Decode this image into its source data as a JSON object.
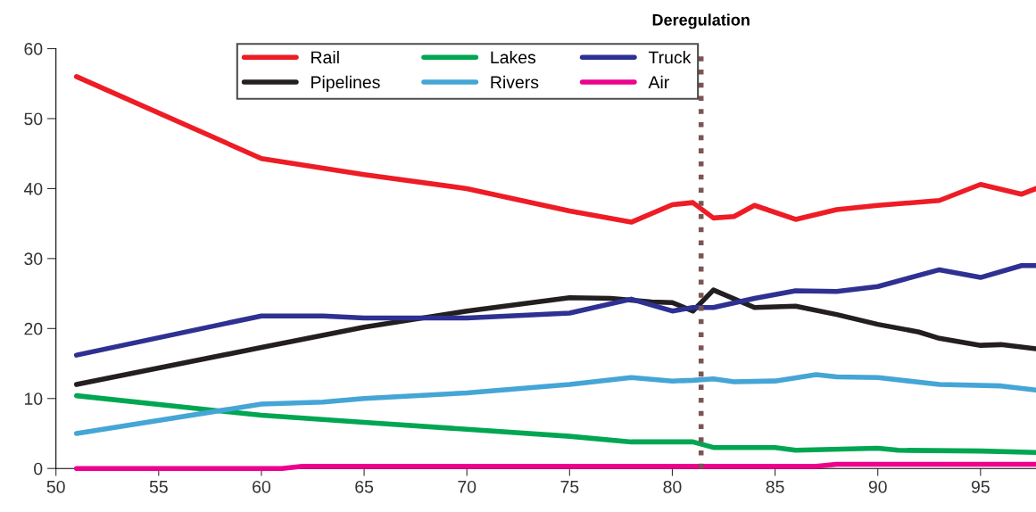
{
  "chart_data": {
    "type": "line",
    "xlim": [
      50,
      97.7
    ],
    "xticks": [
      50,
      55,
      60,
      65,
      70,
      75,
      80,
      85,
      90,
      95
    ],
    "ylim": [
      0,
      60
    ],
    "yticks": [
      0,
      10,
      20,
      30,
      40,
      50,
      60
    ],
    "grid": false,
    "legend": "top",
    "line_style": "solid",
    "marker": "none",
    "ref_lines": [
      {
        "axis": "x",
        "value": 81.4,
        "label": "Deregulation",
        "color": "#7b5555",
        "line_style": "dotted"
      }
    ],
    "series": [
      {
        "name": "Rail",
        "color": "#ee1c25",
        "x": [
          51,
          60,
          65,
          70,
          75,
          78,
          80,
          81,
          82,
          83,
          84,
          86,
          88,
          90,
          93,
          95,
          97,
          97.7
        ],
        "values": [
          56,
          44.3,
          42,
          40,
          36.8,
          35.2,
          37.7,
          38,
          35.8,
          36,
          37.6,
          35.6,
          37,
          37.6,
          38.3,
          40.6,
          39.2,
          40
        ]
      },
      {
        "name": "Pipelines",
        "color": "#231f20",
        "x": [
          51,
          60,
          65,
          70,
          75,
          77,
          79,
          80,
          81,
          82,
          84,
          86,
          88,
          90,
          92,
          93,
          95,
          96,
          97.7
        ],
        "values": [
          12,
          17.3,
          20.2,
          22.5,
          24.4,
          24.3,
          23.8,
          23.7,
          22.5,
          25.5,
          23,
          23.2,
          22,
          20.6,
          19.5,
          18.6,
          17.6,
          17.7,
          17.1
        ]
      },
      {
        "name": "Lakes",
        "color": "#00a651",
        "x": [
          51,
          60,
          65,
          70,
          75,
          78,
          81,
          82,
          85,
          86,
          90,
          91,
          95,
          97.7
        ],
        "values": [
          10.4,
          7.6,
          6.6,
          5.6,
          4.6,
          3.8,
          3.8,
          3,
          3,
          2.6,
          2.9,
          2.6,
          2.5,
          2.3
        ]
      },
      {
        "name": "Rivers",
        "color": "#45a5d6",
        "x": [
          51,
          60,
          63,
          65,
          70,
          75,
          78,
          80,
          81,
          82,
          83,
          85,
          87,
          88,
          90,
          93,
          96,
          97.7
        ],
        "values": [
          5,
          9.2,
          9.5,
          10,
          10.8,
          12,
          13,
          12.5,
          12.6,
          12.8,
          12.4,
          12.5,
          13.4,
          13.1,
          13,
          12,
          11.8,
          11.2
        ]
      },
      {
        "name": "Truck",
        "color": "#2e3192",
        "x": [
          51,
          60,
          63,
          65,
          70,
          75,
          78,
          80,
          81,
          82,
          84,
          86,
          88,
          90,
          93,
          95,
          97,
          97.7
        ],
        "values": [
          16.2,
          21.8,
          21.8,
          21.5,
          21.5,
          22.2,
          24.2,
          22.5,
          23,
          23,
          24.3,
          25.4,
          25.3,
          26,
          28.4,
          27.3,
          29,
          29
        ]
      },
      {
        "name": "Air",
        "color": "#ec008c",
        "x": [
          51,
          61,
          62,
          87,
          88,
          97.7
        ],
        "values": [
          0,
          0,
          0.3,
          0.3,
          0.6,
          0.6
        ]
      }
    ]
  }
}
